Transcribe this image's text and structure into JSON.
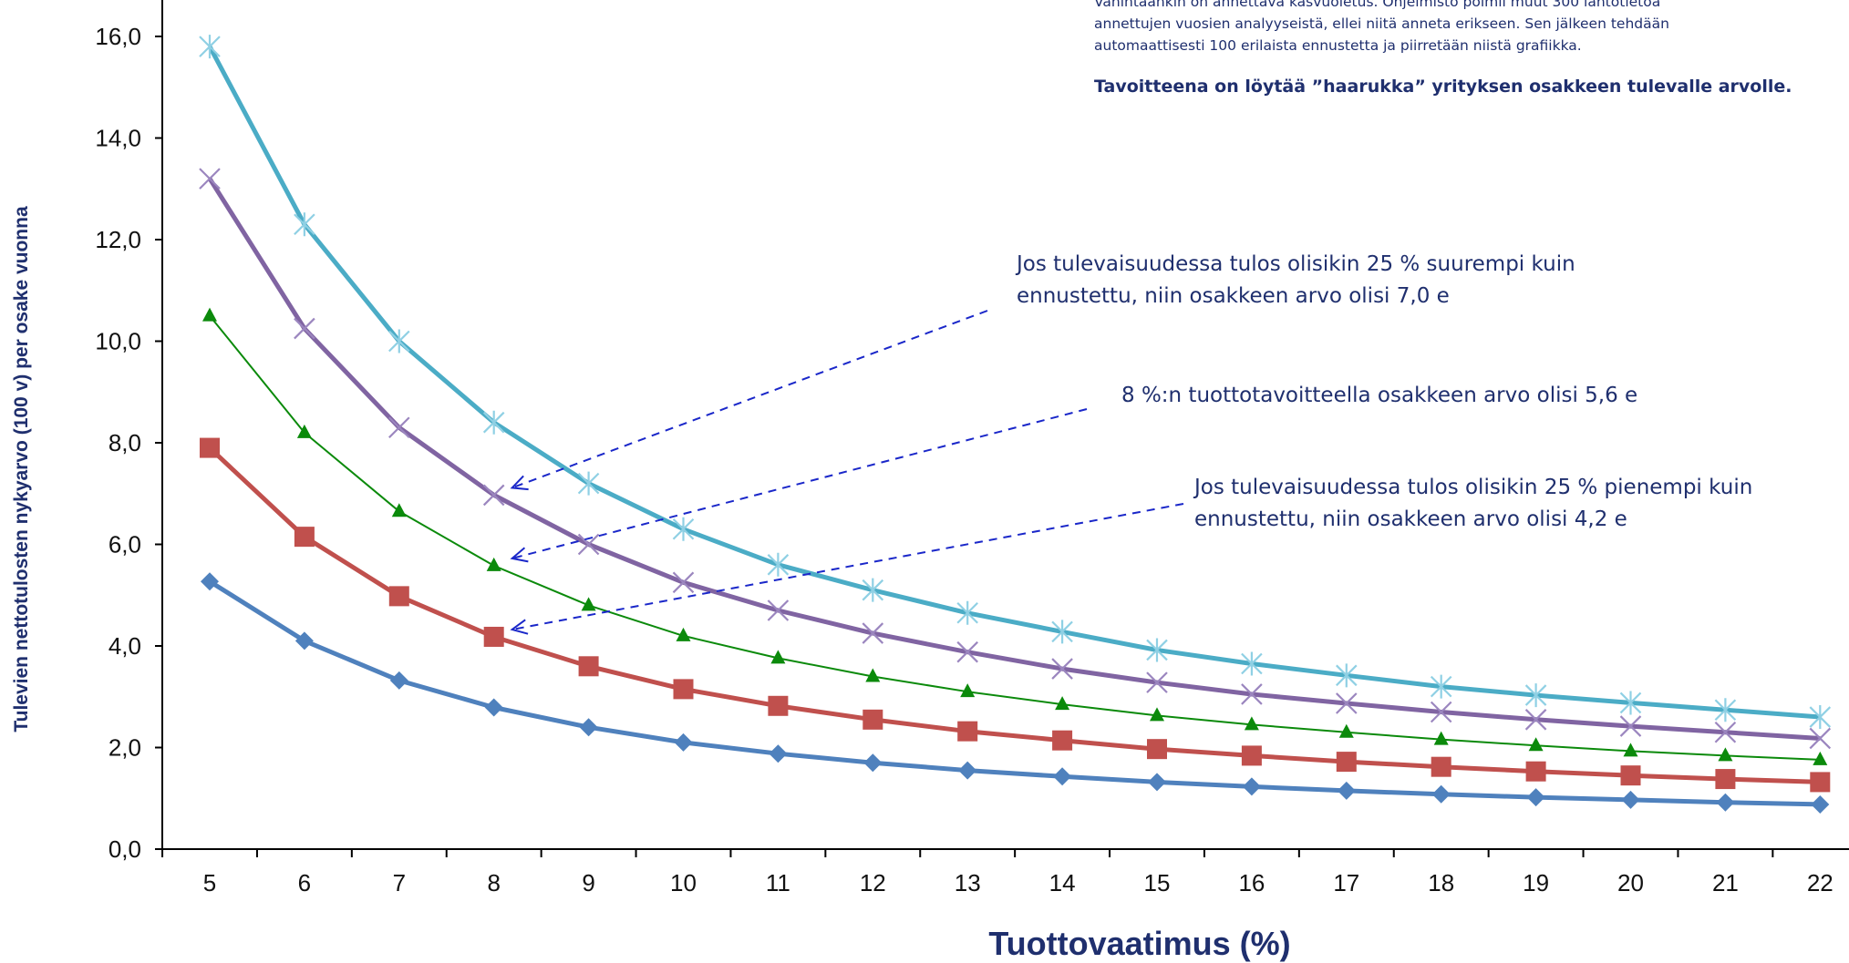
{
  "info_box": {
    "partial_line_1": "Vähintäänkin on annettava kasvuoletus. Ohjelmisto poimii muut 300 lähtötietoa",
    "line_2": "annettujen vuosien analyyseistä, ellei niitä anneta erikseen. Sen jälkeen tehdään",
    "line_3": "automaattisesti 100 erilaista ennustetta ja piirretään niistä grafiikka.",
    "goal": "Tavoitteena on löytää ”haarukka” yrityksen osakkeen tulevalle arvolle."
  },
  "annotations": [
    {
      "line1": "Jos tulevaisuudessa  tulos olisikin 25 % suurempi kuin",
      "line2": "ennustettu, niin osakkeen arvo olisi 7,0 e",
      "target_series": "plus25",
      "target_x": 8
    },
    {
      "line1": "8 %:n tuottotavoitteella  osakkeen arvo olisi  5,6 e",
      "line2": "",
      "target_series": "base",
      "target_x": 8
    },
    {
      "line1": "Jos tulevaisuudessa  tulos olisikin 25 % pienempi kuin",
      "line2": "ennustettu, niin osakkeen arvo olisi 4,2 e",
      "target_series": "minus25",
      "target_x": 8
    }
  ],
  "chart_data": {
    "type": "line",
    "xlabel": "Tuottovaatimus (%)",
    "ylabel": "Tulevien nettotulosten  nykyarvo  (100  v)   per osake   vuonna",
    "x": [
      5,
      6,
      7,
      8,
      9,
      10,
      11,
      12,
      13,
      14,
      15,
      16,
      17,
      18,
      19,
      20,
      21,
      22
    ],
    "x_ticks": [
      "5",
      "6",
      "7",
      "8",
      "9",
      "10",
      "11",
      "12",
      "13",
      "14",
      "15",
      "16",
      "17",
      "18",
      "19",
      "20",
      "21",
      "22"
    ],
    "ylim": [
      0,
      16.5
    ],
    "y_ticks": [
      "0,0",
      "2,0",
      "4,0",
      "6,0",
      "8,0",
      "10,0",
      "12,0",
      "14,0",
      "16,0"
    ],
    "grid": false,
    "series": [
      {
        "key": "s50",
        "color": "#4bacc6",
        "marker": "asterisk",
        "values": [
          15.8,
          12.3,
          10.0,
          8.4,
          7.2,
          6.3,
          5.6,
          5.1,
          4.65,
          4.28,
          3.92,
          3.65,
          3.42,
          3.2,
          3.03,
          2.88,
          2.74,
          2.6
        ]
      },
      {
        "key": "plus25",
        "color": "#8064a2",
        "marker": "x",
        "values": [
          13.2,
          10.25,
          8.3,
          6.97,
          6.0,
          5.25,
          4.7,
          4.25,
          3.88,
          3.55,
          3.28,
          3.05,
          2.87,
          2.7,
          2.55,
          2.42,
          2.3,
          2.18
        ]
      },
      {
        "key": "base",
        "color": "#0b8a0b",
        "marker": "triangle",
        "values": [
          10.5,
          8.2,
          6.65,
          5.58,
          4.8,
          4.2,
          3.76,
          3.4,
          3.1,
          2.85,
          2.63,
          2.45,
          2.3,
          2.16,
          2.04,
          1.93,
          1.84,
          1.76
        ]
      },
      {
        "key": "minus25",
        "color": "#c0504d",
        "marker": "square",
        "values": [
          7.9,
          6.15,
          4.98,
          4.18,
          3.6,
          3.15,
          2.82,
          2.55,
          2.32,
          2.14,
          1.97,
          1.84,
          1.72,
          1.62,
          1.53,
          1.45,
          1.38,
          1.32
        ]
      },
      {
        "key": "s50low",
        "color": "#4f81bd",
        "marker": "diamond",
        "values": [
          5.27,
          4.1,
          3.32,
          2.79,
          2.4,
          2.1,
          1.88,
          1.7,
          1.55,
          1.43,
          1.32,
          1.23,
          1.15,
          1.08,
          1.02,
          0.97,
          0.92,
          0.88
        ]
      }
    ]
  }
}
